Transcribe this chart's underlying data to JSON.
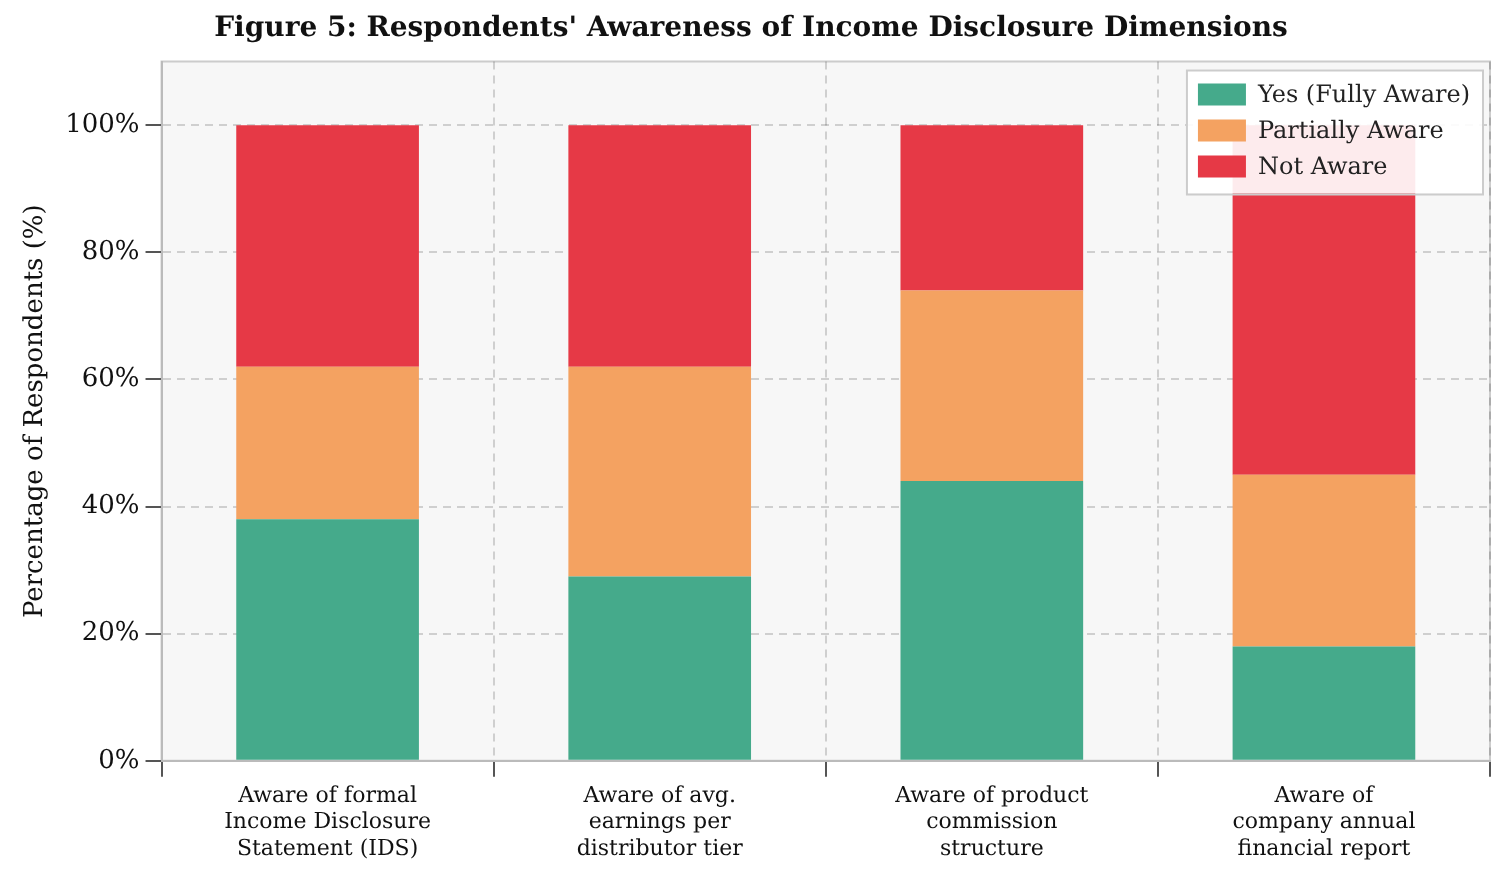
{
  "chart_data": {
    "type": "bar",
    "title": "Figure 5: Respondents' Awareness of Income Disclosure Dimensions",
    "ylabel": "Percentage of Respondents (%)",
    "categories": [
      "Aware of formal\nIncome Disclosure\nStatement (IDS)",
      "Aware of avg.\nearnings per\ndistributor tier",
      "Aware of product\ncommission\nstructure",
      "Aware of\ncompany annual\nfinancial report"
    ],
    "stacked": true,
    "series": [
      {
        "name": "Yes (Fully Aware)",
        "color": "#45aa8b",
        "values": [
          38,
          29,
          44,
          18
        ]
      },
      {
        "name": "Partially Aware",
        "color": "#f4a261",
        "values": [
          24,
          33,
          30,
          27
        ]
      },
      {
        "name": "Not Aware",
        "color": "#e63946",
        "values": [
          38,
          38,
          26,
          55
        ]
      }
    ],
    "ylim": [
      0,
      110
    ],
    "yticks": [
      {
        "value": 0,
        "label": "0%"
      },
      {
        "value": 20,
        "label": "20%"
      },
      {
        "value": 40,
        "label": "40%"
      },
      {
        "value": 60,
        "label": "60%"
      },
      {
        "value": 80,
        "label": "80%"
      },
      {
        "value": 100,
        "label": "100%"
      }
    ],
    "grid": true,
    "legend": "top right"
  }
}
